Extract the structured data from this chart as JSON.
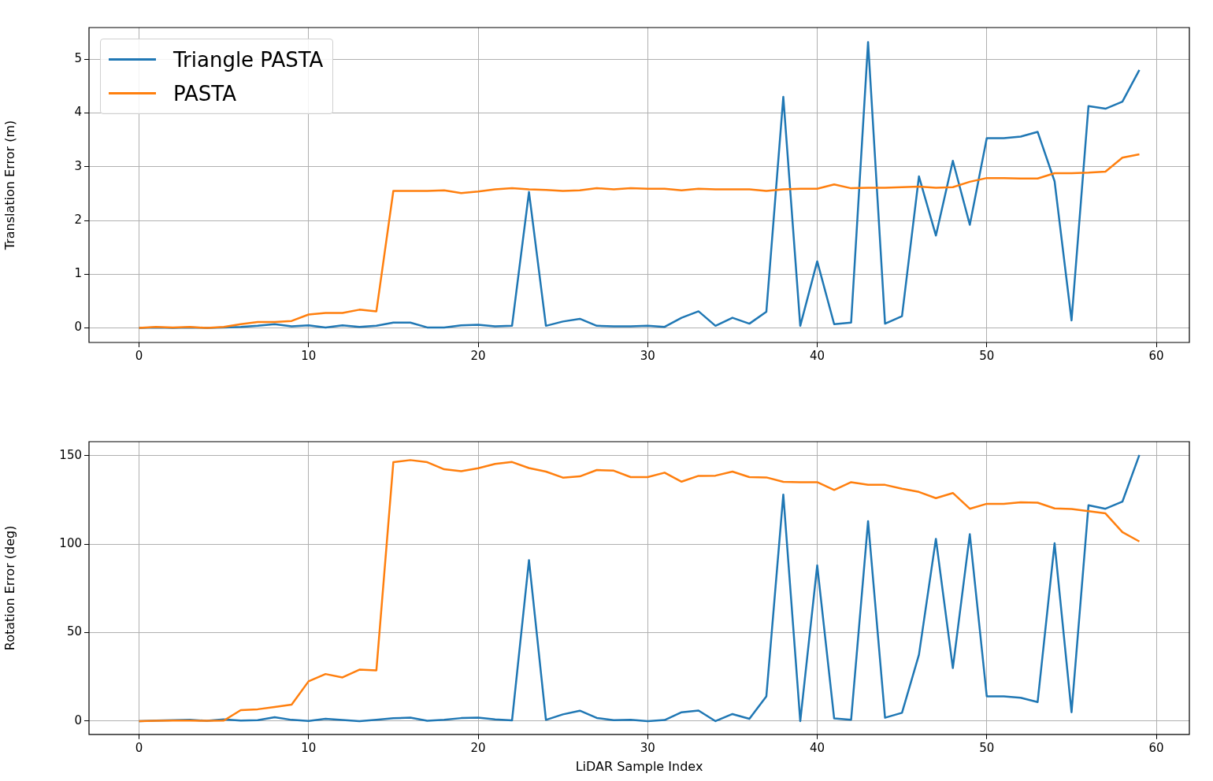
{
  "chart_data": [
    {
      "type": "line",
      "ylabel": "Translation Error (m)",
      "x": [
        0,
        1,
        2,
        3,
        4,
        5,
        6,
        7,
        8,
        9,
        10,
        11,
        12,
        13,
        14,
        15,
        16,
        17,
        18,
        19,
        20,
        21,
        22,
        23,
        24,
        25,
        26,
        27,
        28,
        29,
        30,
        31,
        32,
        33,
        34,
        35,
        36,
        37,
        38,
        39,
        40,
        41,
        42,
        43,
        44,
        45,
        46,
        47,
        48,
        49,
        50,
        51,
        52,
        53,
        54,
        55,
        56,
        57,
        58,
        59
      ],
      "series": [
        {
          "name": "Triangle PASTA",
          "color": "#1f77b4",
          "values": [
            0,
            0.01,
            0,
            0.01,
            0,
            0.01,
            0.02,
            0.04,
            0.07,
            0.03,
            0.05,
            0.01,
            0.05,
            0.02,
            0.04,
            0.1,
            0.1,
            0.01,
            0.01,
            0.05,
            0.06,
            0.03,
            0.04,
            2.53,
            0.04,
            0.12,
            0.17,
            0.04,
            0.03,
            0.03,
            0.04,
            0.02,
            0.19,
            0.31,
            0.04,
            0.19,
            0.08,
            0.3,
            4.3,
            0.04,
            1.24,
            0.07,
            0.1,
            5.32,
            0.08,
            0.22,
            2.82,
            1.72,
            3.11,
            1.92,
            3.53,
            3.53,
            3.56,
            3.65,
            2.73,
            0.14,
            4.13,
            4.08,
            4.21,
            4.8
          ]
        },
        {
          "name": "PASTA",
          "color": "#ff7f0e",
          "values": [
            0,
            0.02,
            0.01,
            0.02,
            0,
            0.02,
            0.07,
            0.11,
            0.11,
            0.13,
            0.25,
            0.28,
            0.28,
            0.34,
            0.31,
            2.55,
            2.55,
            2.55,
            2.56,
            2.51,
            2.54,
            2.58,
            2.6,
            2.58,
            2.57,
            2.55,
            2.56,
            2.6,
            2.58,
            2.6,
            2.59,
            2.59,
            2.56,
            2.59,
            2.58,
            2.58,
            2.58,
            2.55,
            2.58,
            2.59,
            2.59,
            2.67,
            2.6,
            2.61,
            2.61,
            2.62,
            2.63,
            2.61,
            2.62,
            2.72,
            2.79,
            2.79,
            2.78,
            2.78,
            2.88,
            2.88,
            2.89,
            2.91,
            3.17,
            3.23
          ]
        }
      ],
      "xlim": [
        -2.95,
        61.95
      ],
      "xticks": [
        0,
        10,
        20,
        30,
        40,
        50,
        60
      ],
      "ylim": [
        -0.27,
        5.59
      ],
      "yticks": [
        0,
        1,
        2,
        3,
        4,
        5
      ],
      "grid": true,
      "legend": "top left"
    },
    {
      "type": "line",
      "xlabel": "LiDAR Sample Index",
      "ylabel": "Rotation Error (deg)",
      "x": [
        0,
        1,
        2,
        3,
        4,
        5,
        6,
        7,
        8,
        9,
        10,
        11,
        12,
        13,
        14,
        15,
        16,
        17,
        18,
        19,
        20,
        21,
        22,
        23,
        24,
        25,
        26,
        27,
        28,
        29,
        30,
        31,
        32,
        33,
        34,
        35,
        36,
        37,
        38,
        39,
        40,
        41,
        42,
        43,
        44,
        45,
        46,
        47,
        48,
        49,
        50,
        51,
        52,
        53,
        54,
        55,
        56,
        57,
        58,
        59
      ],
      "series": [
        {
          "color": "#1f77b4",
          "values": [
            0,
            0.3,
            0.5,
            0.7,
            0.2,
            1,
            0.3,
            0.5,
            2.2,
            0.7,
            0.1,
            1.3,
            0.6,
            0,
            0.7,
            1.6,
            2,
            0.2,
            0.7,
            1.7,
            2,
            1,
            0.4,
            91,
            0.7,
            3.8,
            5.9,
            1.8,
            0.5,
            0.7,
            0,
            0.6,
            5,
            6,
            0,
            4,
            1.3,
            14,
            128,
            0,
            88,
            1.5,
            0.8,
            113,
            1.9,
            4.7,
            37.5,
            103,
            30,
            105.6,
            14,
            14,
            13.2,
            10.8,
            100.5,
            5,
            122,
            120,
            124,
            150.4
          ]
        },
        {
          "color": "#ff7f0e",
          "values": [
            0,
            0.2,
            0.3,
            0.3,
            0.2,
            0.3,
            6.2,
            6.7,
            8,
            9.3,
            22.5,
            26.6,
            24.7,
            29.1,
            28.7,
            146.3,
            147.5,
            146.3,
            142.3,
            141.2,
            142.9,
            145.3,
            146.4,
            143,
            141,
            137.6,
            138.3,
            141.9,
            141.5,
            137.9,
            137.9,
            140.4,
            135.3,
            138.6,
            138.7,
            141,
            137.9,
            137.7,
            135.2,
            135,
            135,
            130.6,
            135,
            133.5,
            133.5,
            131.3,
            129.5,
            126,
            128.9,
            120,
            122.8,
            122.8,
            123.6,
            123.4,
            120.2,
            119.9,
            118.6,
            117.4,
            106.8,
            101.5
          ]
        }
      ],
      "xlim": [
        -2.95,
        61.95
      ],
      "xticks": [
        0,
        10,
        20,
        30,
        40,
        50,
        60
      ],
      "ylim": [
        -7.5,
        157.9
      ],
      "yticks": [
        0,
        50,
        100,
        150
      ],
      "grid": true
    }
  ]
}
